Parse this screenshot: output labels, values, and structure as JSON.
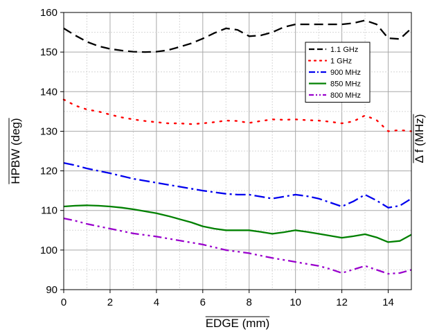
{
  "chart_data": {
    "type": "line",
    "xlabel": "EDGE (mm)",
    "ylabel": "HPBW (deg)",
    "ylabel_right": "Δ f (MHz)",
    "xlim": [
      0,
      15
    ],
    "ylim": [
      90,
      160
    ],
    "xticks": [
      0,
      2,
      4,
      6,
      8,
      10,
      12,
      14
    ],
    "yticks": [
      90,
      100,
      110,
      120,
      130,
      140,
      150,
      160
    ],
    "grid": true,
    "legend_position": "upper-right",
    "series": [
      {
        "name": "1.1 GHz",
        "color": "#000000",
        "style": "dash",
        "x": [
          0,
          0.5,
          1,
          1.5,
          2,
          2.5,
          3,
          3.5,
          4,
          4.5,
          5,
          5.5,
          6,
          6.5,
          7,
          7.5,
          8,
          8.5,
          9,
          9.5,
          10,
          10.5,
          11,
          11.5,
          12,
          12.5,
          13,
          13.5,
          14,
          14.5,
          15
        ],
        "y": [
          156,
          154.2,
          152.6,
          151.5,
          150.8,
          150.4,
          150.1,
          150,
          150.1,
          150.5,
          151.3,
          152.2,
          153.4,
          154.8,
          156,
          155.6,
          154,
          154.2,
          155,
          156.3,
          157,
          157,
          157,
          157,
          157,
          157.3,
          158,
          157,
          153.5,
          153.3,
          156
        ]
      },
      {
        "name": "1 GHz",
        "color": "#ff0000",
        "style": "dot",
        "x": [
          0,
          0.5,
          1,
          1.5,
          2,
          2.5,
          3,
          3.5,
          4,
          4.5,
          5,
          5.5,
          6,
          6.5,
          7,
          7.5,
          8,
          8.5,
          9,
          9.5,
          10,
          10.5,
          11,
          11.5,
          12,
          12.5,
          13,
          13.5,
          14,
          14.5,
          15
        ],
        "y": [
          138,
          136.5,
          135.5,
          135,
          134.2,
          133.5,
          133,
          132.6,
          132.3,
          132,
          132,
          131.8,
          132,
          132.3,
          132.7,
          132.6,
          132.1,
          132.6,
          133,
          132.9,
          133,
          132.8,
          132.7,
          132.4,
          132,
          132.5,
          134,
          132.8,
          130,
          130.3,
          130
        ]
      },
      {
        "name": "900 MHz",
        "color": "#0000ee",
        "style": "dashdot",
        "x": [
          0,
          0.5,
          1,
          1.5,
          2,
          2.5,
          3,
          3.5,
          4,
          4.5,
          5,
          5.5,
          6,
          6.5,
          7,
          7.5,
          8,
          8.5,
          9,
          9.5,
          10,
          10.5,
          11,
          11.5,
          12,
          12.5,
          13,
          13.5,
          14,
          14.5,
          15
        ],
        "y": [
          122,
          121.4,
          120.6,
          120,
          119.4,
          118.7,
          118,
          117.5,
          117,
          116.5,
          116,
          115.5,
          115,
          114.6,
          114.2,
          114,
          114,
          113.5,
          113,
          113.5,
          114,
          113.6,
          113,
          112,
          111,
          112.3,
          114,
          112.5,
          110.7,
          111.2,
          113
        ]
      },
      {
        "name": "850 MHz",
        "color": "#008000",
        "style": "solid",
        "x": [
          0,
          0.5,
          1,
          1.5,
          2,
          2.5,
          3,
          3.5,
          4,
          4.5,
          5,
          5.5,
          6,
          6.5,
          7,
          7.5,
          8,
          8.5,
          9,
          9.5,
          10,
          10.5,
          11,
          11.5,
          12,
          12.5,
          13,
          13.5,
          14,
          14.5,
          15
        ],
        "y": [
          111,
          111.2,
          111.3,
          111.2,
          111,
          110.7,
          110.3,
          109.8,
          109.3,
          108.6,
          107.8,
          107,
          106,
          105.4,
          105,
          105,
          105,
          104.6,
          104.1,
          104.5,
          105,
          104.6,
          104.1,
          103.6,
          103.1,
          103.5,
          104,
          103.2,
          102,
          102.3,
          103.9
        ]
      },
      {
        "name": "800 MHz",
        "color": "#9900cc",
        "style": "dashdotdot",
        "x": [
          0,
          0.5,
          1,
          1.5,
          2,
          2.5,
          3,
          3.5,
          4,
          4.5,
          5,
          5.5,
          6,
          6.5,
          7,
          7.5,
          8,
          8.5,
          9,
          9.5,
          10,
          10.5,
          11,
          11.5,
          12,
          12.5,
          13,
          13.5,
          14,
          14.5,
          15
        ],
        "y": [
          108,
          107.4,
          106.6,
          106,
          105.4,
          104.8,
          104.2,
          103.8,
          103.4,
          102.9,
          102.4,
          101.9,
          101.4,
          100.7,
          100,
          99.6,
          99.2,
          98.6,
          98,
          97.5,
          97,
          96.5,
          96,
          95.2,
          94.2,
          95.1,
          96,
          95,
          94,
          94.2,
          95
        ]
      }
    ]
  }
}
